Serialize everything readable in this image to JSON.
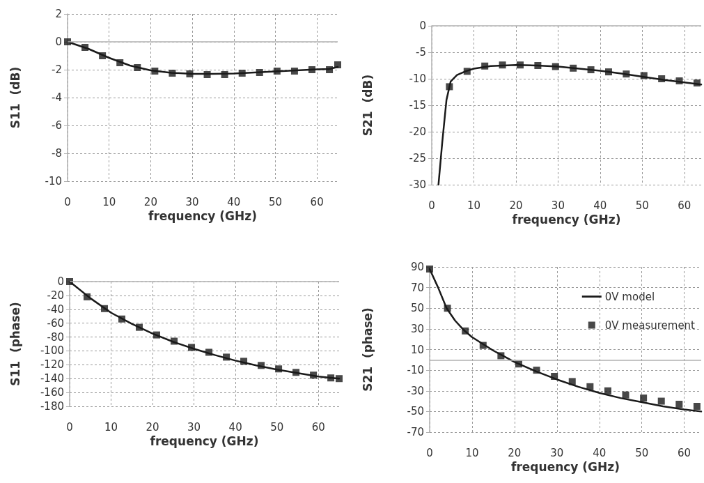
{
  "chart_data": [
    {
      "type": "line",
      "xlabel": "frequency (GHz)",
      "ylabel": "S11  (dB)",
      "xlim": [
        0,
        65
      ],
      "xticks": [
        0,
        10,
        20,
        30,
        40,
        50,
        60
      ],
      "ylim": [
        -10,
        2
      ],
      "yticks": [
        -10,
        -8,
        -6,
        -4,
        -2,
        0,
        2
      ],
      "grid": true,
      "line_style": "solid",
      "ref_lines": [
        {
          "axis": "y",
          "value": 0,
          "color": "#b0b0b0"
        }
      ],
      "series": [
        {
          "type": "line",
          "marker": "none",
          "color": "#1a1a1a",
          "x": [
            0,
            5,
            10,
            15,
            20,
            25,
            30,
            35,
            40,
            45,
            50,
            55,
            60,
            63,
            65
          ],
          "values": [
            0,
            -0.5,
            -1.15,
            -1.7,
            -2.05,
            -2.22,
            -2.3,
            -2.3,
            -2.27,
            -2.2,
            -2.12,
            -2.05,
            -1.98,
            -1.95,
            -1.8
          ]
        },
        {
          "type": "scatter",
          "marker": "square",
          "color": "#1a1a1a",
          "x": [
            0,
            4.2,
            8.4,
            12.6,
            16.8,
            21,
            25.2,
            29.4,
            33.6,
            37.8,
            42,
            46.2,
            50.4,
            54.6,
            58.8,
            63,
            65
          ],
          "values": [
            0,
            -0.4,
            -1.0,
            -1.5,
            -1.85,
            -2.1,
            -2.25,
            -2.3,
            -2.35,
            -2.35,
            -2.25,
            -2.2,
            -2.1,
            -2.1,
            -2.0,
            -2.0,
            -1.65
          ]
        }
      ]
    },
    {
      "type": "line",
      "xlabel": "frequency (GHz)",
      "ylabel": "S21  (dB)",
      "xlim": [
        0,
        64
      ],
      "xticks": [
        0,
        10,
        20,
        30,
        40,
        50,
        60
      ],
      "ylim": [
        -30,
        0
      ],
      "yticks": [
        -30,
        -25,
        -20,
        -15,
        -10,
        -5,
        0
      ],
      "grid": true,
      "line_style": "solid",
      "ref_lines": [
        {
          "axis": "y",
          "value": 0,
          "color": "#b0b0b0"
        }
      ],
      "series": [
        {
          "type": "line",
          "marker": "none",
          "color": "#1a1a1a",
          "x": [
            1.6,
            2.5,
            3.5,
            4.5,
            6,
            8,
            10,
            14,
            20,
            25,
            30,
            35,
            40,
            45,
            50,
            55,
            60,
            64
          ],
          "values": [
            -30,
            -22,
            -14,
            -10.5,
            -9.3,
            -8.6,
            -8.1,
            -7.6,
            -7.4,
            -7.5,
            -7.7,
            -8.1,
            -8.5,
            -9.0,
            -9.6,
            -10.2,
            -10.7,
            -11.1
          ]
        },
        {
          "type": "scatter",
          "marker": "square",
          "color": "#1a1a1a",
          "x": [
            4.2,
            8.4,
            12.6,
            16.8,
            21,
            25.2,
            29.4,
            33.6,
            37.8,
            42,
            46.2,
            50.4,
            54.6,
            58.8,
            63
          ],
          "values": [
            -11.5,
            -8.6,
            -7.6,
            -7.4,
            -7.4,
            -7.5,
            -7.7,
            -8.0,
            -8.3,
            -8.7,
            -9.1,
            -9.4,
            -10.0,
            -10.4,
            -10.8
          ]
        }
      ]
    },
    {
      "type": "line",
      "xlabel": "frequency (GHz)",
      "ylabel": "S11  (phase)",
      "xlim": [
        0,
        65
      ],
      "xticks": [
        0,
        10,
        20,
        30,
        40,
        50,
        60
      ],
      "ylim": [
        -180,
        0
      ],
      "yticks": [
        -180,
        -160,
        -140,
        -120,
        -100,
        -80,
        -60,
        -40,
        -20,
        0
      ],
      "grid": true,
      "line_style": "solid",
      "ref_lines": [
        {
          "axis": "y",
          "value": 0,
          "color": "#b0b0b0"
        }
      ],
      "series": [
        {
          "type": "line",
          "marker": "none",
          "color": "#1a1a1a",
          "x": [
            0,
            5,
            10,
            15,
            20,
            25,
            30,
            35,
            40,
            45,
            50,
            55,
            60,
            65
          ],
          "values": [
            0,
            -24,
            -45,
            -61,
            -75,
            -87,
            -97,
            -106,
            -114,
            -121,
            -127,
            -132,
            -137,
            -140
          ]
        },
        {
          "type": "scatter",
          "marker": "square",
          "color": "#1a1a1a",
          "x": [
            0,
            4.2,
            8.4,
            12.6,
            16.8,
            21,
            25.2,
            29.4,
            33.6,
            37.8,
            42,
            46.2,
            50.4,
            54.6,
            58.8,
            63,
            65
          ],
          "values": [
            0,
            -22,
            -39,
            -54,
            -66,
            -77,
            -86,
            -95,
            -102,
            -109,
            -115,
            -121,
            -126,
            -131,
            -135,
            -139,
            -140
          ]
        }
      ]
    },
    {
      "type": "line",
      "xlabel": "frequency (GHz)",
      "ylabel": "S21  (phase)",
      "xlim": [
        0,
        64
      ],
      "xticks": [
        0,
        10,
        20,
        30,
        40,
        50,
        60
      ],
      "ylim": [
        -70,
        90
      ],
      "yticks": [
        -70,
        -50,
        -30,
        -10,
        10,
        30,
        50,
        70,
        90
      ],
      "grid": true,
      "line_style": "solid",
      "legend": "top right",
      "ref_lines": [
        {
          "axis": "y",
          "value": 0,
          "color": "#b0b0b0"
        }
      ],
      "series": [
        {
          "type": "line",
          "name": "0V model",
          "marker": "none",
          "color": "#1a1a1a",
          "x": [
            0,
            2,
            4,
            6,
            8,
            10,
            15,
            20,
            25,
            30,
            35,
            40,
            45,
            50,
            55,
            60,
            64
          ],
          "values": [
            88,
            70,
            50,
            38,
            29,
            22,
            9,
            -2,
            -11,
            -19,
            -26,
            -32,
            -37,
            -41,
            -45,
            -48,
            -50
          ]
        },
        {
          "type": "scatter",
          "name": "0V measurement",
          "marker": "square",
          "color": "#1a1a1a",
          "x": [
            0,
            4.2,
            8.4,
            12.6,
            16.8,
            21,
            25.2,
            29.4,
            33.6,
            37.8,
            42,
            46.2,
            50.4,
            54.6,
            58.8,
            63
          ],
          "values": [
            88,
            50,
            28,
            14,
            4,
            -4,
            -10,
            -16,
            -21,
            -26,
            -30,
            -34,
            -37,
            -40,
            -43,
            -45
          ]
        }
      ]
    }
  ]
}
